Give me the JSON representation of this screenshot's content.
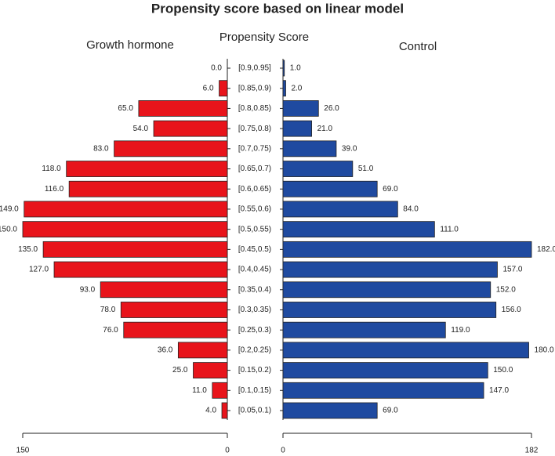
{
  "chart_data": {
    "type": "pyramid",
    "title": "Propensity score based on linear model",
    "category_label": "Propensity Score",
    "categories": [
      "[0.9,0.95]",
      "[0.85,0.9)",
      "[0.8,0.85)",
      "[0.75,0.8)",
      "[0.7,0.75)",
      "[0.65,0.7)",
      "[0.6,0.65)",
      "[0.55,0.6)",
      "[0.5,0.55)",
      "[0.45,0.5)",
      "[0.4,0.45)",
      "[0.35,0.4)",
      "[0.3,0.35)",
      "[0.25,0.3)",
      "[0.2,0.25)",
      "[0.15,0.2)",
      "[0.1,0.15)",
      "[0.05,0.1)"
    ],
    "series": [
      {
        "name": "Growth hormone",
        "color": "#e8141b",
        "values": [
          0,
          6,
          65,
          54,
          83,
          118,
          116,
          149,
          150,
          135,
          127,
          93,
          78,
          76,
          36,
          25,
          11,
          4
        ],
        "value_labels": [
          "0.0",
          "6.0",
          "65.0",
          "54.0",
          "83.0",
          "118.0",
          "116.0",
          "149.0",
          "150.0",
          "135.0",
          "127.0",
          "93.0",
          "78.0",
          "76.0",
          "36.0",
          "25.0",
          "11.0",
          "4.0"
        ],
        "xlim": [
          150,
          0
        ],
        "xticks": [
          150,
          0
        ]
      },
      {
        "name": "Control",
        "color": "#1f4aa0",
        "values": [
          1,
          2,
          26,
          21,
          39,
          51,
          69,
          84,
          111,
          182,
          157,
          152,
          156,
          119,
          180,
          150,
          147,
          69
        ],
        "value_labels": [
          "1.0",
          "2.0",
          "26.0",
          "21.0",
          "39.0",
          "51.0",
          "69.0",
          "84.0",
          "111.0",
          "182.0",
          "157.0",
          "152.0",
          "156.0",
          "119.0",
          "180.0",
          "150.0",
          "147.0",
          "69.0"
        ],
        "xlim": [
          0,
          182
        ],
        "xticks": [
          0,
          182
        ]
      }
    ]
  }
}
